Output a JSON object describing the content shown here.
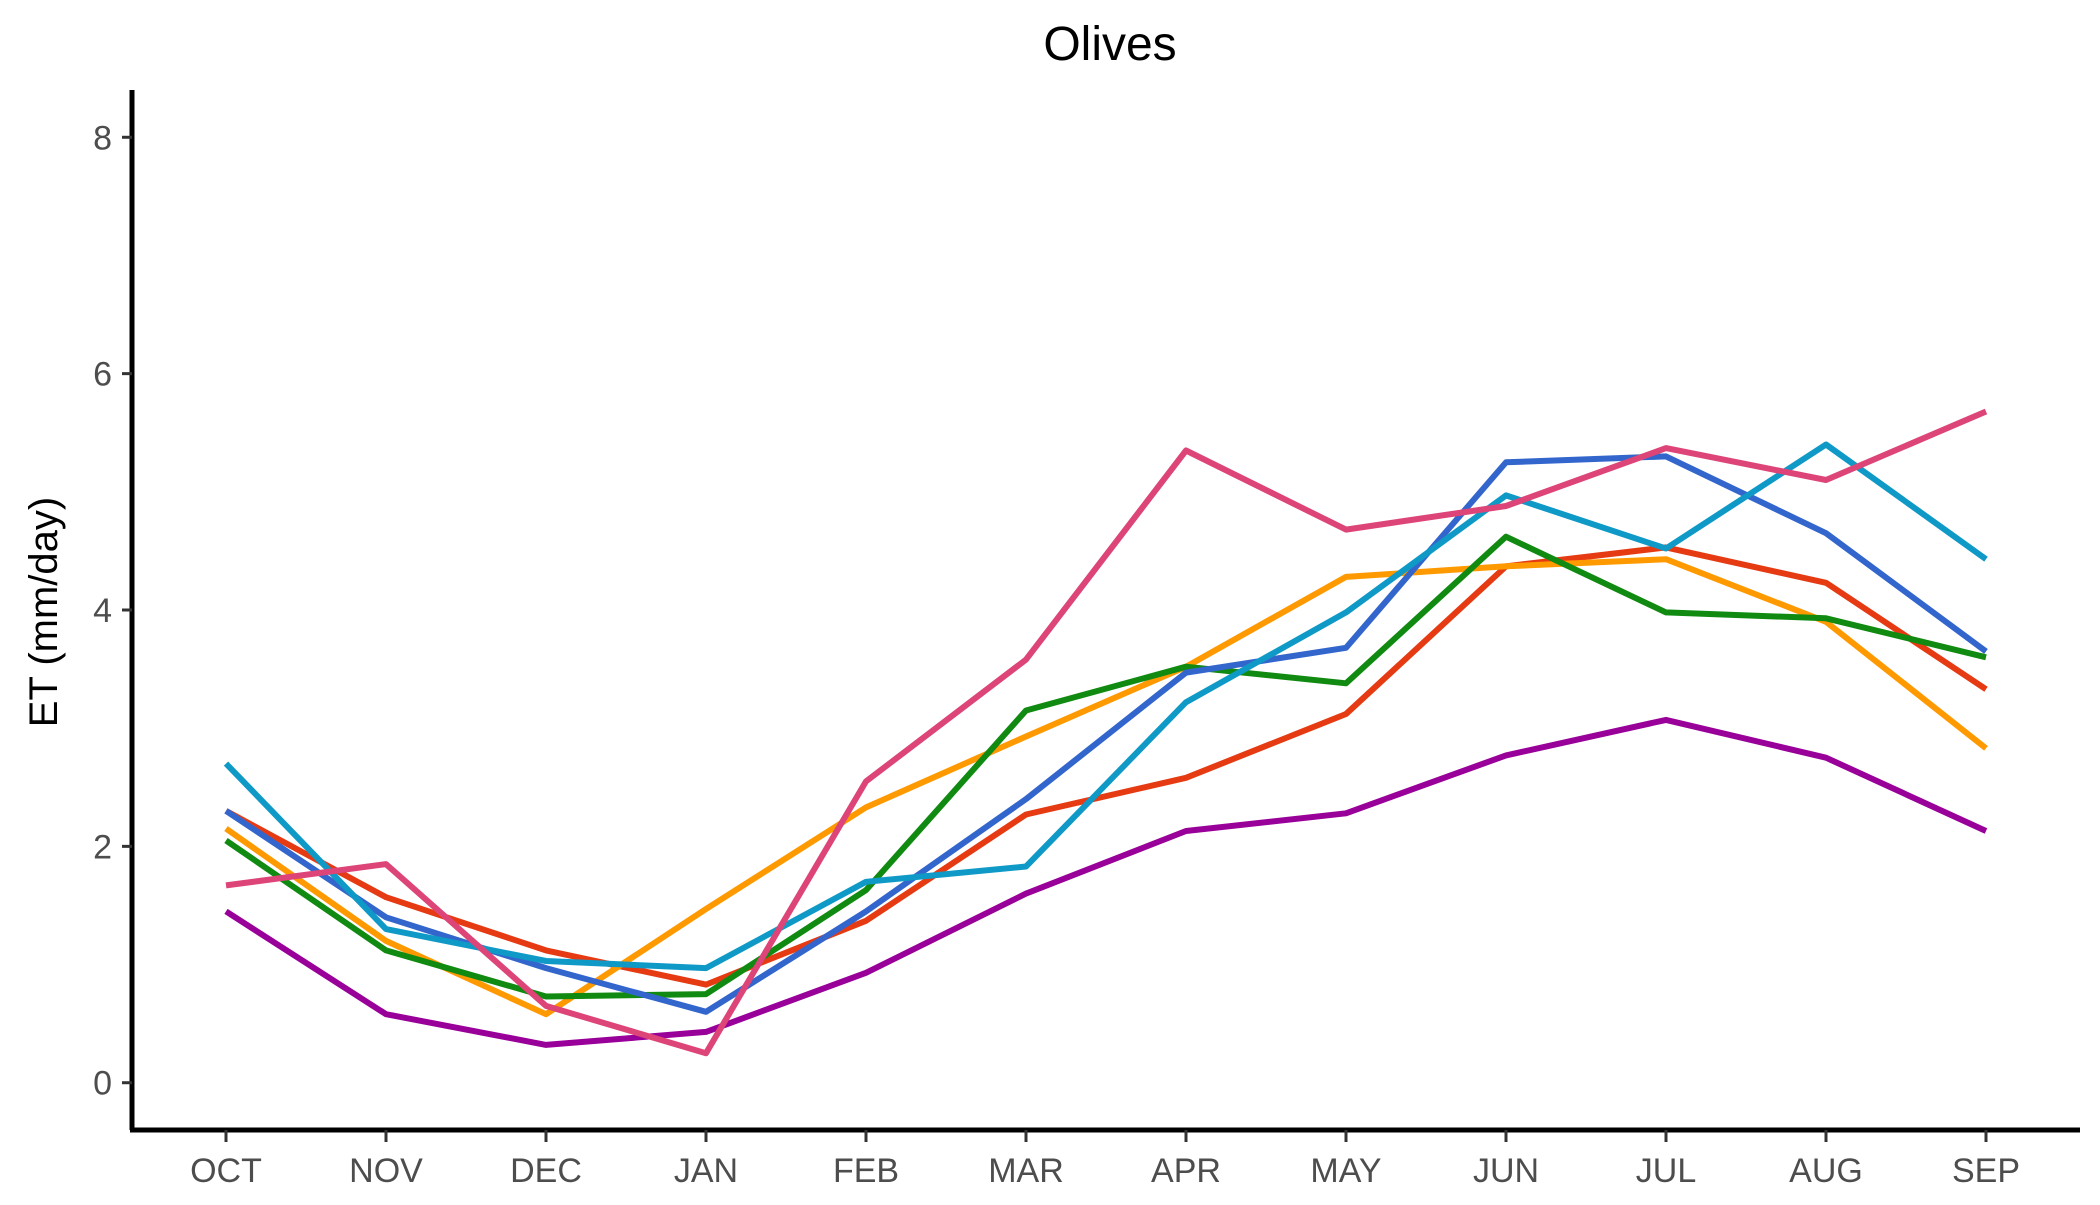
{
  "chart_data": {
    "type": "line",
    "title": "Olives",
    "xlabel": "",
    "ylabel": "ET (mm/day)",
    "categories": [
      "OCT",
      "NOV",
      "DEC",
      "JAN",
      "FEB",
      "MAR",
      "APR",
      "MAY",
      "JUN",
      "JUL",
      "AUG",
      "SEP"
    ],
    "yticks": [
      "0",
      "2",
      "4",
      "6",
      "8"
    ],
    "ylim": [
      -0.4,
      8.4
    ],
    "grid": false,
    "legend": "none",
    "series": [
      {
        "color": "#E63A13",
        "values": [
          2.3,
          1.57,
          1.12,
          0.83,
          1.37,
          2.27,
          2.58,
          3.12,
          4.37,
          4.53,
          4.23,
          3.33
        ]
      },
      {
        "color": "#FF9900",
        "values": [
          2.15,
          1.2,
          0.58,
          1.47,
          2.33,
          2.93,
          3.52,
          4.28,
          4.37,
          4.43,
          3.9,
          2.83
        ]
      },
      {
        "color": "#108A10",
        "values": [
          2.05,
          1.12,
          0.73,
          0.75,
          1.63,
          3.15,
          3.52,
          3.38,
          4.62,
          3.98,
          3.93,
          3.6
        ]
      },
      {
        "color": "#3366CC",
        "values": [
          2.3,
          1.4,
          0.97,
          0.6,
          1.45,
          2.4,
          3.47,
          3.68,
          5.25,
          5.3,
          4.65,
          3.65
        ]
      },
      {
        "color": "#0F99C6",
        "values": [
          2.7,
          1.3,
          1.03,
          0.97,
          1.7,
          1.83,
          3.22,
          3.98,
          4.97,
          4.52,
          5.4,
          4.43
        ]
      },
      {
        "color": "#990099",
        "values": [
          1.45,
          0.58,
          0.32,
          0.43,
          0.93,
          1.6,
          2.13,
          2.28,
          2.77,
          3.07,
          2.75,
          2.13
        ]
      },
      {
        "color": "#DD4477",
        "values": [
          1.67,
          1.85,
          0.65,
          0.25,
          2.55,
          3.58,
          5.35,
          4.68,
          4.88,
          5.37,
          5.1,
          5.68
        ]
      }
    ]
  }
}
